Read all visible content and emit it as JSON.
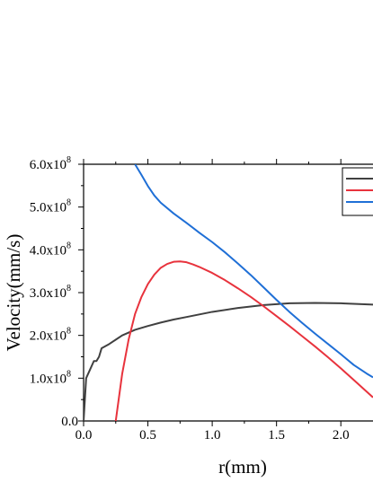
{
  "chart_data": {
    "type": "line",
    "title": "",
    "xlabel": "r(mm)",
    "ylabel": "Velocity(mm/s)",
    "xlim": [
      0.0,
      2.25
    ],
    "ylim": [
      0.0,
      600000000
    ],
    "x_ticks": [
      {
        "value": 0.0,
        "label": "0.0"
      },
      {
        "value": 0.5,
        "label": "0.5"
      },
      {
        "value": 1.0,
        "label": "1.0"
      },
      {
        "value": 1.5,
        "label": "1.5"
      },
      {
        "value": 2.0,
        "label": "2.0"
      }
    ],
    "y_ticks": [
      {
        "value": 0,
        "mantissa": "0.0",
        "exponent": ""
      },
      {
        "value": 100000000,
        "mantissa": "1.0x10",
        "exponent": "8"
      },
      {
        "value": 200000000,
        "mantissa": "2.0x10",
        "exponent": "8"
      },
      {
        "value": 300000000,
        "mantissa": "3.0x10",
        "exponent": "8"
      },
      {
        "value": 400000000,
        "mantissa": "4.0x10",
        "exponent": "8"
      },
      {
        "value": 500000000,
        "mantissa": "5.0x10",
        "exponent": "8"
      },
      {
        "value": 600000000,
        "mantissa": "6.0x10",
        "exponent": "8"
      }
    ],
    "grid": false,
    "legend": {
      "placement": "top-right",
      "entries": 3
    },
    "series": [
      {
        "color": "#404040",
        "x": [
          0.0,
          0.02,
          0.05,
          0.08,
          0.1,
          0.12,
          0.14,
          0.2,
          0.3,
          0.4,
          0.5,
          0.6,
          0.7,
          0.8,
          0.9,
          1.0,
          1.2,
          1.4,
          1.6,
          1.8,
          2.0,
          2.25
        ],
        "y": [
          0,
          100000000,
          120000000,
          140000000,
          140000000,
          150000000,
          170000000,
          180000000,
          200000000,
          213000000,
          222000000,
          230000000,
          237000000,
          243000000,
          249000000,
          255000000,
          264000000,
          271000000,
          275000000,
          276000000,
          275000000,
          272000000
        ]
      },
      {
        "color": "#e8333d",
        "x": [
          0.25,
          0.3,
          0.35,
          0.4,
          0.45,
          0.5,
          0.55,
          0.6,
          0.65,
          0.7,
          0.75,
          0.8,
          0.85,
          0.9,
          1.0,
          1.1,
          1.2,
          1.3,
          1.4,
          1.5,
          1.6,
          1.7,
          1.8,
          1.9,
          2.0,
          2.1,
          2.25
        ],
        "y": [
          0,
          110000000,
          190000000,
          250000000,
          290000000,
          320000000,
          342000000,
          358000000,
          367000000,
          372000000,
          373000000,
          371000000,
          366000000,
          360000000,
          346000000,
          329000000,
          310000000,
          290000000,
          268000000,
          245000000,
          222000000,
          198000000,
          174000000,
          149000000,
          123000000,
          96000000,
          55000000
        ]
      },
      {
        "color": "#1f6fd6",
        "x": [
          0.4,
          0.45,
          0.5,
          0.55,
          0.6,
          0.7,
          0.8,
          0.9,
          1.0,
          1.1,
          1.2,
          1.3,
          1.4,
          1.5,
          1.6,
          1.7,
          1.8,
          1.9,
          2.0,
          2.1,
          2.2,
          2.25
        ],
        "y": [
          600000000,
          575000000,
          549000000,
          527000000,
          510000000,
          485000000,
          463000000,
          440000000,
          418000000,
          394000000,
          368000000,
          341000000,
          312000000,
          283000000,
          255000000,
          229000000,
          204000000,
          180000000,
          156000000,
          131000000,
          111000000,
          102000000
        ]
      }
    ]
  }
}
